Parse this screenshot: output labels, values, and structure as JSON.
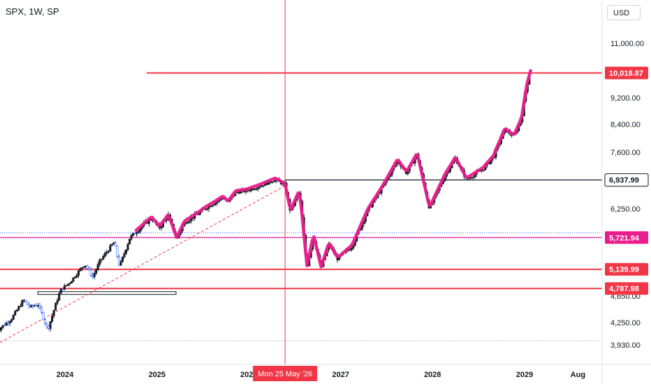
{
  "header": {
    "symbol": "SPX, 1W, SP",
    "currency": "USD"
  },
  "crosshair": {
    "date_label": "Mon 25 May '26"
  },
  "chart_data": {
    "type": "line",
    "title": "SPX, 1W, SP",
    "ylabel": "USD",
    "ylim": [
      3850,
      11700
    ],
    "xlim": [
      "2023-04-01",
      "2029-11-01"
    ],
    "x_ticks": [
      {
        "label": "2024",
        "date": "2024-01-01"
      },
      {
        "label": "2025",
        "date": "2025-01-01"
      },
      {
        "label": "2027",
        "date": "2027-01-01"
      },
      {
        "label": "2028",
        "date": "2028-01-01"
      },
      {
        "label": "2029",
        "date": "2029-01-01"
      },
      {
        "label": "Aug",
        "date": "2029-08-01"
      }
    ],
    "y_ticks": [
      {
        "label": "11,000.00",
        "value": 11000
      },
      {
        "label": "9,200.00",
        "value": 9200
      },
      {
        "label": "8,400.00",
        "value": 8400
      },
      {
        "label": "7,600.00",
        "value": 7600
      },
      {
        "label": "6,250.00",
        "value": 6250
      },
      {
        "label": "4,650.00",
        "value": 4650
      },
      {
        "label": "4,250.00",
        "value": 4250
      },
      {
        "label": "3,930.00",
        "value": 3930
      }
    ],
    "series": [
      {
        "color_up": "#131722",
        "color_down": "#131722",
        "points": [
          {
            "x": "2023-04-01",
            "y": 4120
          },
          {
            "x": "2023-06-01",
            "y": 4300
          },
          {
            "x": "2023-07-20",
            "y": 4590
          },
          {
            "x": "2023-08-15",
            "y": 4480
          },
          {
            "x": "2023-09-15",
            "y": 4530
          },
          {
            "x": "2023-10-25",
            "y": 4150
          },
          {
            "x": "2023-12-15",
            "y": 4760
          },
          {
            "x": "2024-01-20",
            "y": 4900
          },
          {
            "x": "2024-03-20",
            "y": 5240
          },
          {
            "x": "2024-04-20",
            "y": 5000
          },
          {
            "x": "2024-05-20",
            "y": 5300
          },
          {
            "x": "2024-07-15",
            "y": 5640
          },
          {
            "x": "2024-08-05",
            "y": 5190
          },
          {
            "x": "2024-09-15",
            "y": 5720
          },
          {
            "x": "2024-10-15",
            "y": 5850
          },
          {
            "x": "2024-12-10",
            "y": 6080
          },
          {
            "x": "2025-01-10",
            "y": 5900
          },
          {
            "x": "2025-02-15",
            "y": 6120
          },
          {
            "x": "2025-03-20",
            "y": 5700
          },
          {
            "x": "2025-04-20",
            "y": 6000
          },
          {
            "x": "2025-06-20",
            "y": 6180
          },
          {
            "x": "2025-08-20",
            "y": 6400
          },
          {
            "x": "2025-09-20",
            "y": 6520
          },
          {
            "x": "2025-10-10",
            "y": 6400
          },
          {
            "x": "2025-11-10",
            "y": 6650
          },
          {
            "x": "2025-12-20",
            "y": 6680
          },
          {
            "x": "2026-02-15",
            "y": 6800
          },
          {
            "x": "2026-04-15",
            "y": 6950
          },
          {
            "x": "2026-05-25",
            "y": 6820
          },
          {
            "x": "2026-06-15",
            "y": 6180
          },
          {
            "x": "2026-07-20",
            "y": 6650
          },
          {
            "x": "2026-08-20",
            "y": 5180
          },
          {
            "x": "2026-09-15",
            "y": 5750
          },
          {
            "x": "2026-10-15",
            "y": 5160
          },
          {
            "x": "2026-11-15",
            "y": 5600
          },
          {
            "x": "2026-12-20",
            "y": 5330
          },
          {
            "x": "2027-02-15",
            "y": 5560
          },
          {
            "x": "2027-04-15",
            "y": 6180
          },
          {
            "x": "2027-06-15",
            "y": 6750
          },
          {
            "x": "2027-08-15",
            "y": 7400
          },
          {
            "x": "2027-09-20",
            "y": 7100
          },
          {
            "x": "2027-11-01",
            "y": 7550
          },
          {
            "x": "2027-12-20",
            "y": 6250
          },
          {
            "x": "2028-02-20",
            "y": 7050
          },
          {
            "x": "2028-04-01",
            "y": 7450
          },
          {
            "x": "2028-05-15",
            "y": 6950
          },
          {
            "x": "2028-07-20",
            "y": 7200
          },
          {
            "x": "2028-09-01",
            "y": 7500
          },
          {
            "x": "2028-10-15",
            "y": 8250
          },
          {
            "x": "2028-11-20",
            "y": 8050
          },
          {
            "x": "2028-12-20",
            "y": 8550
          },
          {
            "x": "2029-01-10",
            "y": 9600
          },
          {
            "x": "2029-01-25",
            "y": 10050
          }
        ]
      }
    ],
    "horizontal_levels": [
      {
        "label": "10,018.87",
        "value": 10018.87,
        "color": "#f23645"
      },
      {
        "label": "6,937.99",
        "value": 6937.99,
        "color": "#131722"
      },
      {
        "label": "5,721.94",
        "value": 5721.94,
        "color": "#e91e8c"
      },
      {
        "label": "5,139.99",
        "value": 5139.99,
        "color": "#f23645"
      },
      {
        "label": "4,787.98",
        "value": 4787.98,
        "color": "#f23645"
      }
    ],
    "obscured_levels": [
      {
        "label": "5,808.44",
        "value": 5808.44,
        "color": "#2962ff"
      }
    ],
    "colors": {
      "candles": "#131722",
      "early_candles": "#2962ff",
      "highlight_stroke": "#e91e8c",
      "resistance": "#f23645",
      "trendline": "#f23645",
      "crosshair": "#f23645",
      "axis_text": "#131722",
      "grid_dotted": "#9598a1"
    },
    "crosshair_date": "2026-05-25",
    "trendline": {
      "from": {
        "x": "2023-04-01",
        "y": 3930
      },
      "to": {
        "x": "2026-05-25",
        "y": 6800
      }
    },
    "box_level": {
      "from": "2023-09-15",
      "to": "2025-01-15",
      "value": 4705
    }
  }
}
